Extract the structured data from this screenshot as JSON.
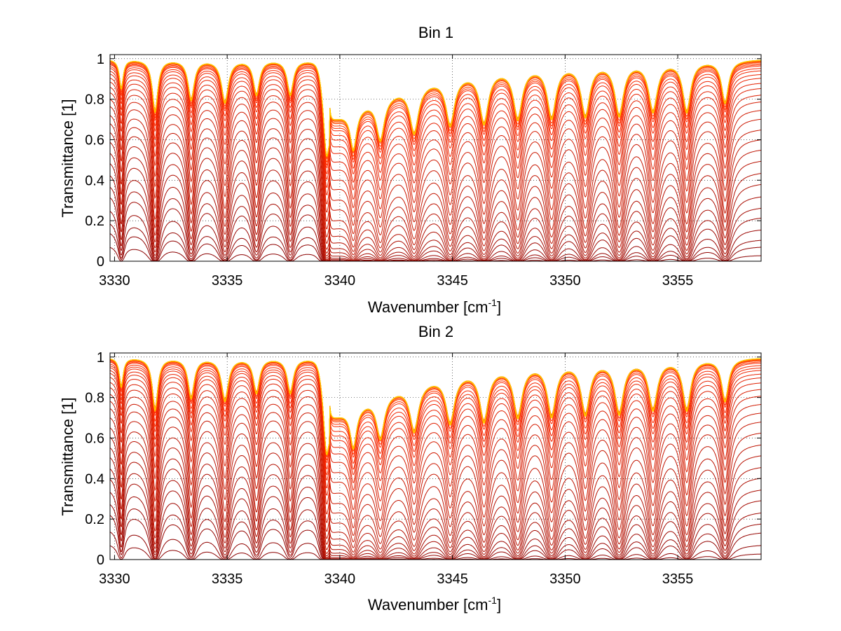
{
  "chart_data": [
    {
      "type": "line",
      "title": "Bin 1",
      "xlabel": "Wavenumber [cm",
      "xlabel_sup": "-1",
      "xlabel_suffix": "]",
      "ylabel": "Transmittance [1]",
      "xlim": [
        3329.8,
        3358.7
      ],
      "ylim": [
        0,
        1.02
      ],
      "xticks": [
        3330,
        3335,
        3340,
        3345,
        3350,
        3355
      ],
      "yticks": [
        0,
        0.2,
        0.4,
        0.6,
        0.8,
        1
      ],
      "xtick_labels": [
        "3330",
        "3335",
        "3340",
        "3345",
        "3350",
        "3355"
      ],
      "ytick_labels": [
        "0",
        "0.2",
        "0.4",
        "0.6",
        "0.8",
        "1"
      ],
      "grid": "dotted",
      "n_series": 40,
      "series_continuum_at_3358": [
        0.0,
        0.01,
        0.02,
        0.04,
        0.07,
        0.1,
        0.14,
        0.19,
        0.24,
        0.3,
        0.36,
        0.42,
        0.48,
        0.55,
        0.61,
        0.67,
        0.72,
        0.77,
        0.81,
        0.85,
        0.88,
        0.91,
        0.93,
        0.95,
        0.96,
        0.97,
        0.98,
        0.985,
        0.99,
        0.993,
        0.995,
        0.996,
        0.997,
        0.998,
        0.998,
        0.999,
        0.999,
        0.999,
        1.0,
        1.0
      ],
      "absorption_lines": [
        {
          "x": 3330.3,
          "depth": 0.5,
          "width": 0.1
        },
        {
          "x": 3331.8,
          "depth": 0.95,
          "width": 0.14
        },
        {
          "x": 3333.4,
          "depth": 0.7,
          "width": 0.16
        },
        {
          "x": 3334.9,
          "depth": 0.75,
          "width": 0.18
        },
        {
          "x": 3336.3,
          "depth": 0.6,
          "width": 0.16
        },
        {
          "x": 3337.8,
          "depth": 0.6,
          "width": 0.16
        },
        {
          "x": 3339.4,
          "depth": 1.0,
          "width": 0.12
        },
        {
          "x": 3340.6,
          "depth": 0.97,
          "width": 0.16
        },
        {
          "x": 3341.8,
          "depth": 0.95,
          "width": 0.2
        },
        {
          "x": 3343.3,
          "depth": 0.99,
          "width": 0.22
        },
        {
          "x": 3344.9,
          "depth": 0.95,
          "width": 0.22
        },
        {
          "x": 3346.4,
          "depth": 1.0,
          "width": 0.22
        },
        {
          "x": 3347.9,
          "depth": 0.96,
          "width": 0.22
        },
        {
          "x": 3349.4,
          "depth": 0.98,
          "width": 0.22
        },
        {
          "x": 3350.9,
          "depth": 0.97,
          "width": 0.22
        },
        {
          "x": 3352.4,
          "depth": 0.97,
          "width": 0.22
        },
        {
          "x": 3353.9,
          "depth": 0.9,
          "width": 0.22
        },
        {
          "x": 3355.4,
          "depth": 0.92,
          "width": 0.2
        },
        {
          "x": 3357.1,
          "depth": 0.75,
          "width": 0.18
        }
      ],
      "broad_band": {
        "center": 3339.55,
        "depth": 0.8,
        "width": 0.5,
        "right_tail": 3.5
      }
    },
    {
      "type": "line",
      "title": "Bin 2",
      "xlabel": "Wavenumber [cm",
      "xlabel_sup": "-1",
      "xlabel_suffix": "]",
      "ylabel": "Transmittance [1]",
      "xlim": [
        3329.8,
        3358.7
      ],
      "ylim": [
        0,
        1.02
      ],
      "xticks": [
        3330,
        3335,
        3340,
        3345,
        3350,
        3355
      ],
      "yticks": [
        0,
        0.2,
        0.4,
        0.6,
        0.8,
        1
      ],
      "xtick_labels": [
        "3330",
        "3335",
        "3340",
        "3345",
        "3350",
        "3355"
      ],
      "ytick_labels": [
        "0",
        "0.2",
        "0.4",
        "0.6",
        "0.8",
        "1"
      ],
      "grid": "dotted",
      "n_series": 40,
      "series_continuum_at_3358": [
        0.0,
        0.01,
        0.03,
        0.05,
        0.08,
        0.12,
        0.16,
        0.21,
        0.26,
        0.32,
        0.38,
        0.45,
        0.52,
        0.58,
        0.64,
        0.7,
        0.75,
        0.8,
        0.84,
        0.87,
        0.9,
        0.92,
        0.94,
        0.96,
        0.97,
        0.98,
        0.985,
        0.99,
        0.993,
        0.995,
        0.996,
        0.997,
        0.998,
        0.998,
        0.999,
        0.999,
        0.999,
        1.0,
        1.0,
        1.0
      ],
      "absorption_lines": [
        {
          "x": 3330.3,
          "depth": 0.5,
          "width": 0.1
        },
        {
          "x": 3331.8,
          "depth": 0.95,
          "width": 0.14
        },
        {
          "x": 3333.4,
          "depth": 0.7,
          "width": 0.16
        },
        {
          "x": 3334.9,
          "depth": 0.75,
          "width": 0.18
        },
        {
          "x": 3336.3,
          "depth": 0.6,
          "width": 0.16
        },
        {
          "x": 3337.8,
          "depth": 0.6,
          "width": 0.16
        },
        {
          "x": 3339.4,
          "depth": 1.0,
          "width": 0.12
        },
        {
          "x": 3340.6,
          "depth": 0.97,
          "width": 0.16
        },
        {
          "x": 3341.8,
          "depth": 0.95,
          "width": 0.2
        },
        {
          "x": 3343.3,
          "depth": 0.99,
          "width": 0.22
        },
        {
          "x": 3344.9,
          "depth": 0.95,
          "width": 0.22
        },
        {
          "x": 3346.4,
          "depth": 1.0,
          "width": 0.22
        },
        {
          "x": 3347.9,
          "depth": 0.96,
          "width": 0.22
        },
        {
          "x": 3349.4,
          "depth": 0.98,
          "width": 0.22
        },
        {
          "x": 3350.9,
          "depth": 0.97,
          "width": 0.22
        },
        {
          "x": 3352.4,
          "depth": 0.97,
          "width": 0.22
        },
        {
          "x": 3353.9,
          "depth": 0.9,
          "width": 0.22
        },
        {
          "x": 3355.4,
          "depth": 0.92,
          "width": 0.2
        },
        {
          "x": 3357.1,
          "depth": 0.75,
          "width": 0.18
        }
      ],
      "broad_band": {
        "center": 3339.55,
        "depth": 0.8,
        "width": 0.5,
        "right_tail": 3.5
      }
    }
  ],
  "colors": {
    "series_low": "#8b0000",
    "series_mid": "#ff2a00",
    "series_high": "#ffd000",
    "grid": "#000000",
    "axes": "#000000",
    "background": "#ffffff"
  }
}
